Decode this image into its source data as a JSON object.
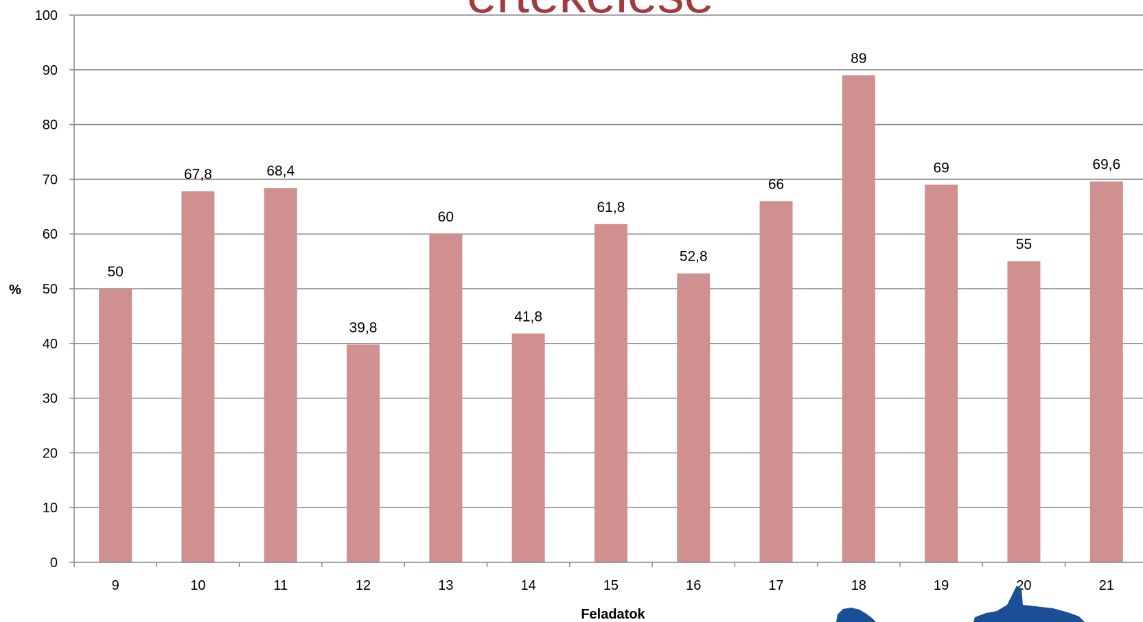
{
  "chart_data": {
    "type": "bar",
    "title": "értékelése",
    "xlabel": "Feladatok",
    "ylabel": "%",
    "categories": [
      "9",
      "10",
      "11",
      "12",
      "13",
      "14",
      "15",
      "16",
      "17",
      "18",
      "19",
      "20",
      "21"
    ],
    "values": [
      50,
      67.8,
      68.4,
      39.8,
      60,
      41.8,
      61.8,
      52.8,
      66,
      89,
      69,
      55,
      69.6
    ],
    "data_labels": [
      "50",
      "67,8",
      "68,4",
      "39,8",
      "60",
      "41,8",
      "61,8",
      "52,8",
      "66",
      "89",
      "69",
      "55",
      "69,6"
    ],
    "ylim": [
      0,
      100
    ],
    "yticks": [
      0,
      10,
      20,
      30,
      40,
      50,
      60,
      70,
      80,
      90,
      100
    ],
    "grid": true,
    "colors": {
      "bar": "#d09090",
      "grid": "#868686",
      "axis": "#868686",
      "title": "#a33a3d",
      "logo": "#1a4f98"
    }
  }
}
